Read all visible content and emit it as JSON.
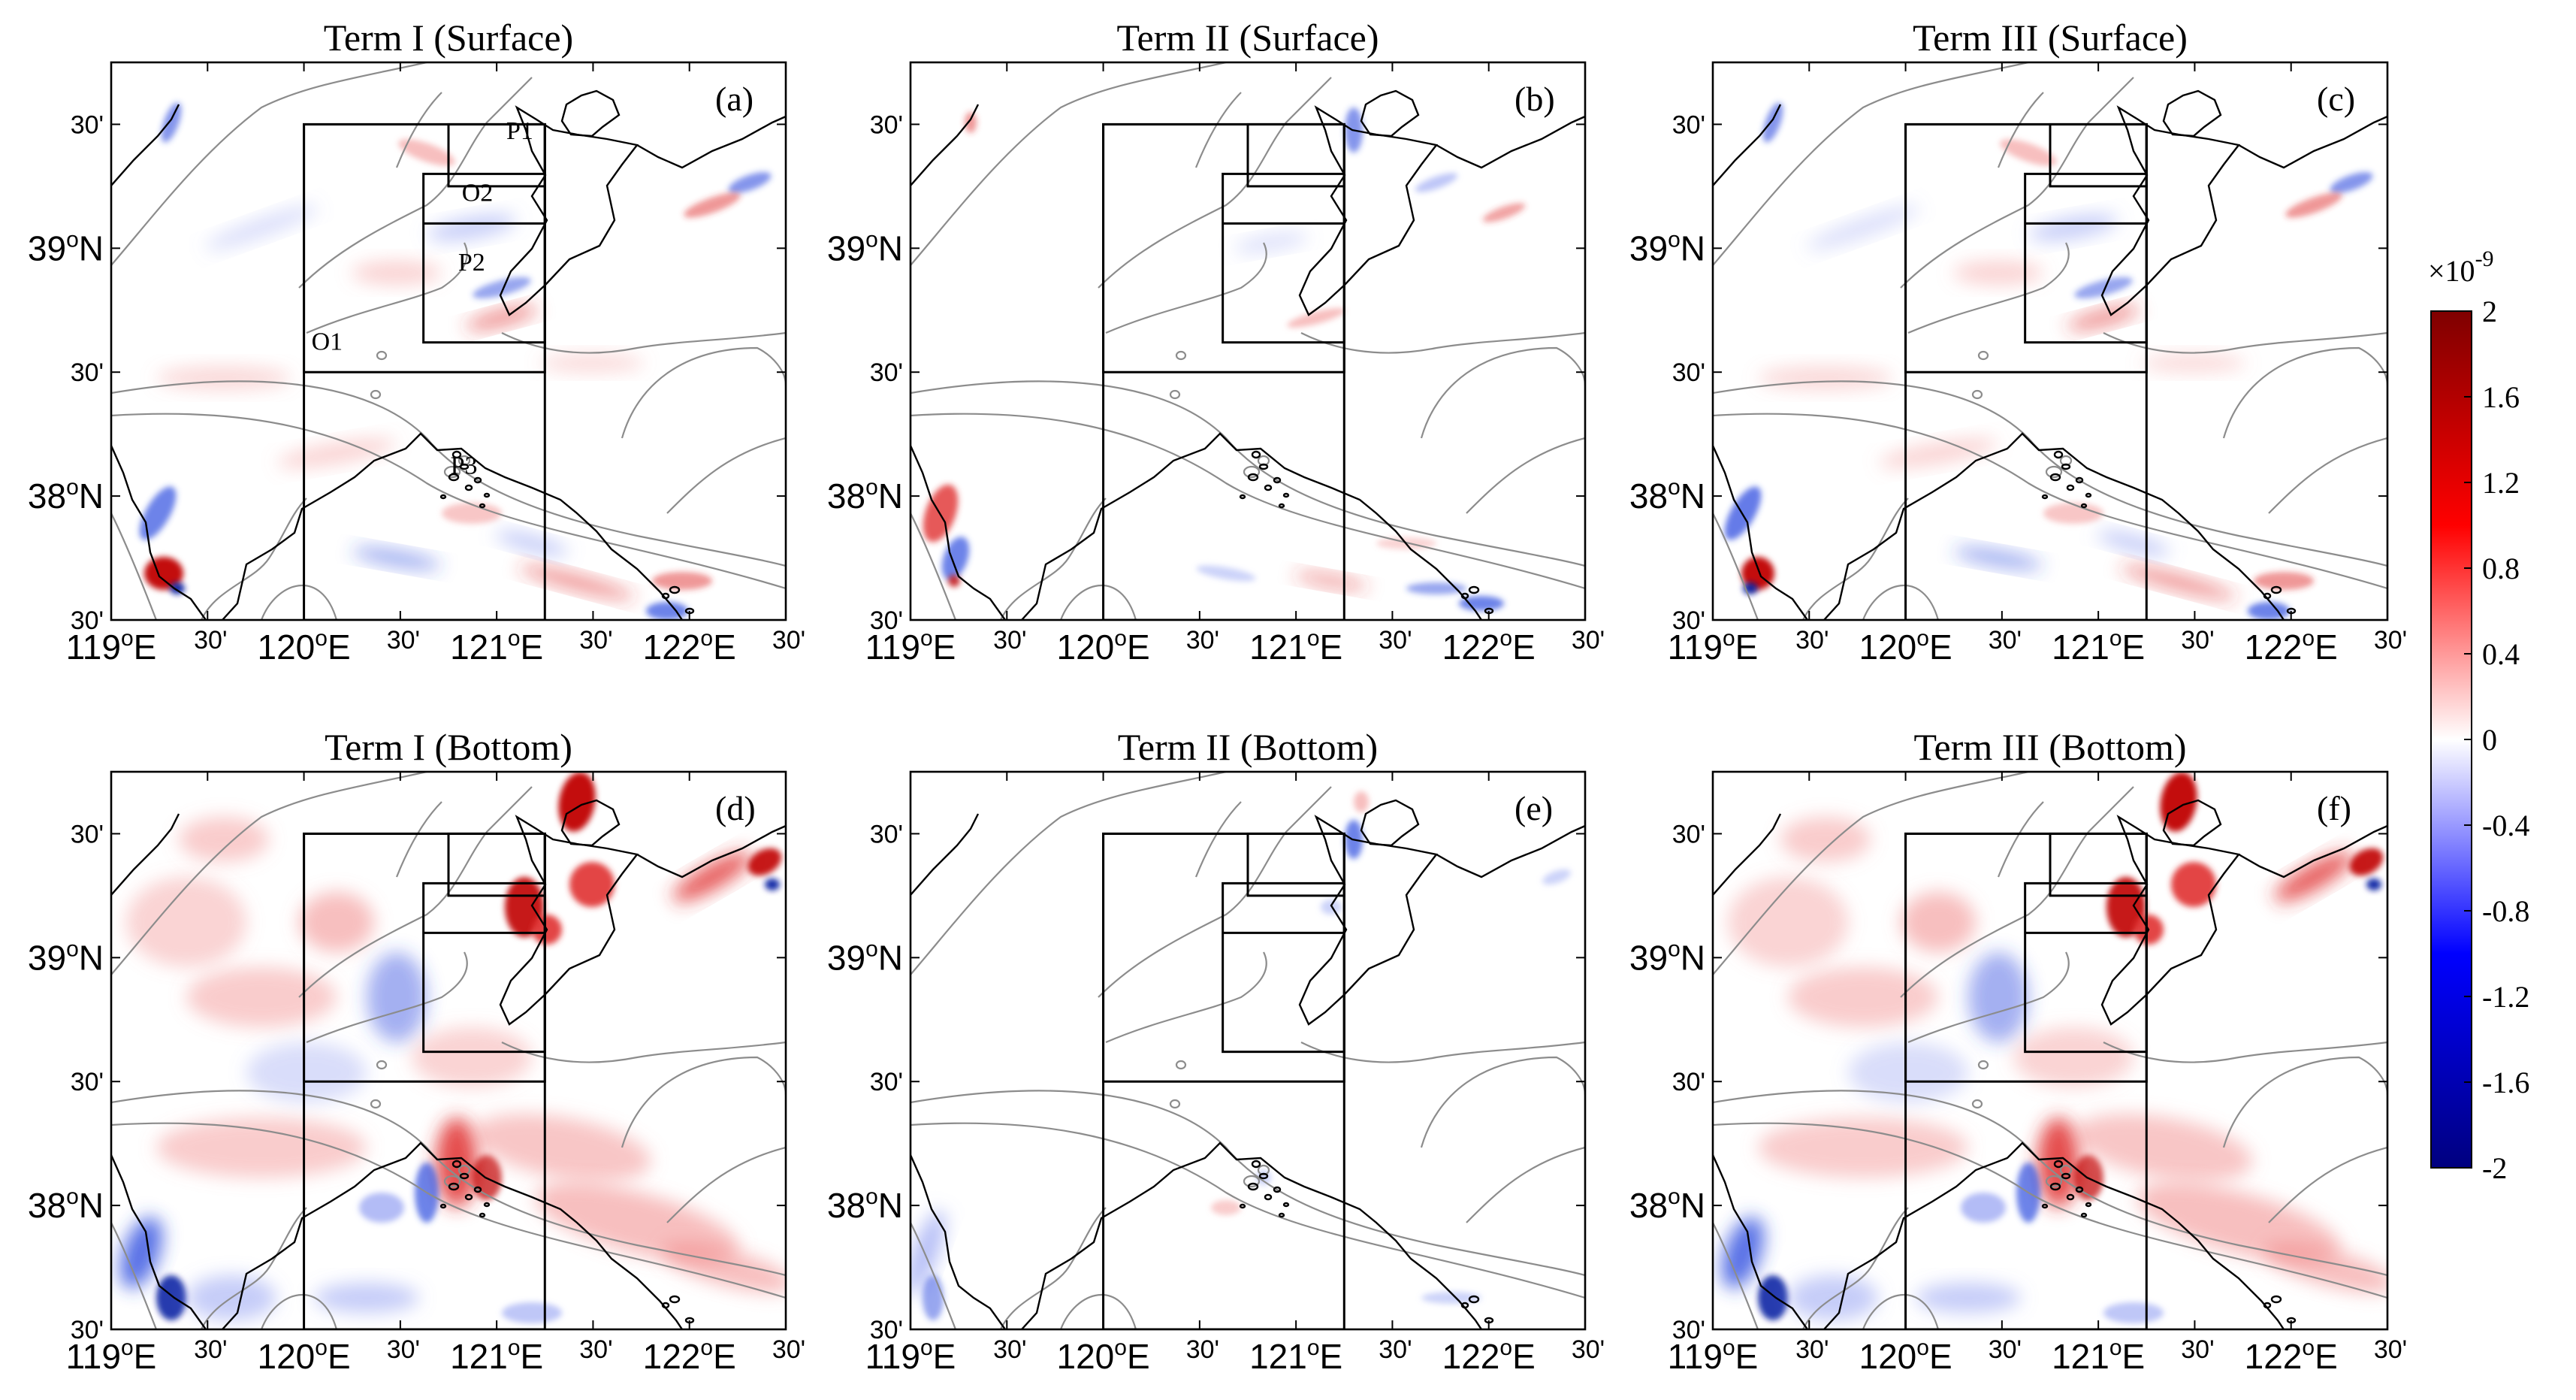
{
  "panels": [
    {
      "id": "a",
      "title": "Term I (Surface)",
      "tag": "(a)",
      "variant": "surface1",
      "region_labels": [
        "P1",
        "O2",
        "P2",
        "O1",
        "P3"
      ]
    },
    {
      "id": "b",
      "title": "Term II (Surface)",
      "tag": "(b)",
      "variant": "surface2",
      "region_labels": []
    },
    {
      "id": "c",
      "title": "Term III (Surface)",
      "tag": "(c)",
      "variant": "surface3",
      "region_labels": []
    },
    {
      "id": "d",
      "title": "Term I (Bottom)",
      "tag": "(d)",
      "variant": "bottom1",
      "region_labels": []
    },
    {
      "id": "e",
      "title": "Term II (Bottom)",
      "tag": "(e)",
      "variant": "bottom2",
      "region_labels": []
    },
    {
      "id": "f",
      "title": "Term III (Bottom)",
      "tag": "(f)",
      "variant": "bottom3",
      "region_labels": []
    }
  ],
  "axes": {
    "x_ticks": [
      {
        "deg": "119",
        "suffix": "E",
        "lon": 119.0
      },
      {
        "min": "30'",
        "lon": 119.5
      },
      {
        "deg": "120",
        "suffix": "E",
        "lon": 120.0
      },
      {
        "min": "30'",
        "lon": 120.5
      },
      {
        "deg": "121",
        "suffix": "E",
        "lon": 121.0
      },
      {
        "min": "30'",
        "lon": 121.5
      },
      {
        "deg": "122",
        "suffix": "E",
        "lon": 122.0
      },
      {
        "min": "30'",
        "lon": 122.5
      }
    ],
    "y_ticks": [
      {
        "min": "30'",
        "lat": 39.5
      },
      {
        "deg": "39",
        "suffix": "N",
        "lat": 39.0
      },
      {
        "min": "30'",
        "lat": 38.5
      },
      {
        "deg": "38",
        "suffix": "N",
        "lat": 38.0
      },
      {
        "min": "30'",
        "lat": 37.5
      }
    ],
    "lon_range": [
      119.0,
      122.5
    ],
    "lat_range": [
      37.5,
      39.75
    ]
  },
  "colorbar": {
    "exponent_label": "×10",
    "exponent": "-9",
    "ticks": [
      "2",
      "1.6",
      "1.2",
      "0.8",
      "0.4",
      "0",
      "-0.4",
      "-0.8",
      "-1.2",
      "-1.6",
      "-2"
    ],
    "range": [
      -2,
      2
    ],
    "colors": {
      "max": "#7f0000",
      "high": "#ff0000",
      "zero": "#ffffff",
      "low": "#0000ff",
      "min": "#00007f"
    }
  },
  "styles": {
    "coast": "#000000",
    "contour": "#8c8c8c",
    "box": "#000000"
  }
}
